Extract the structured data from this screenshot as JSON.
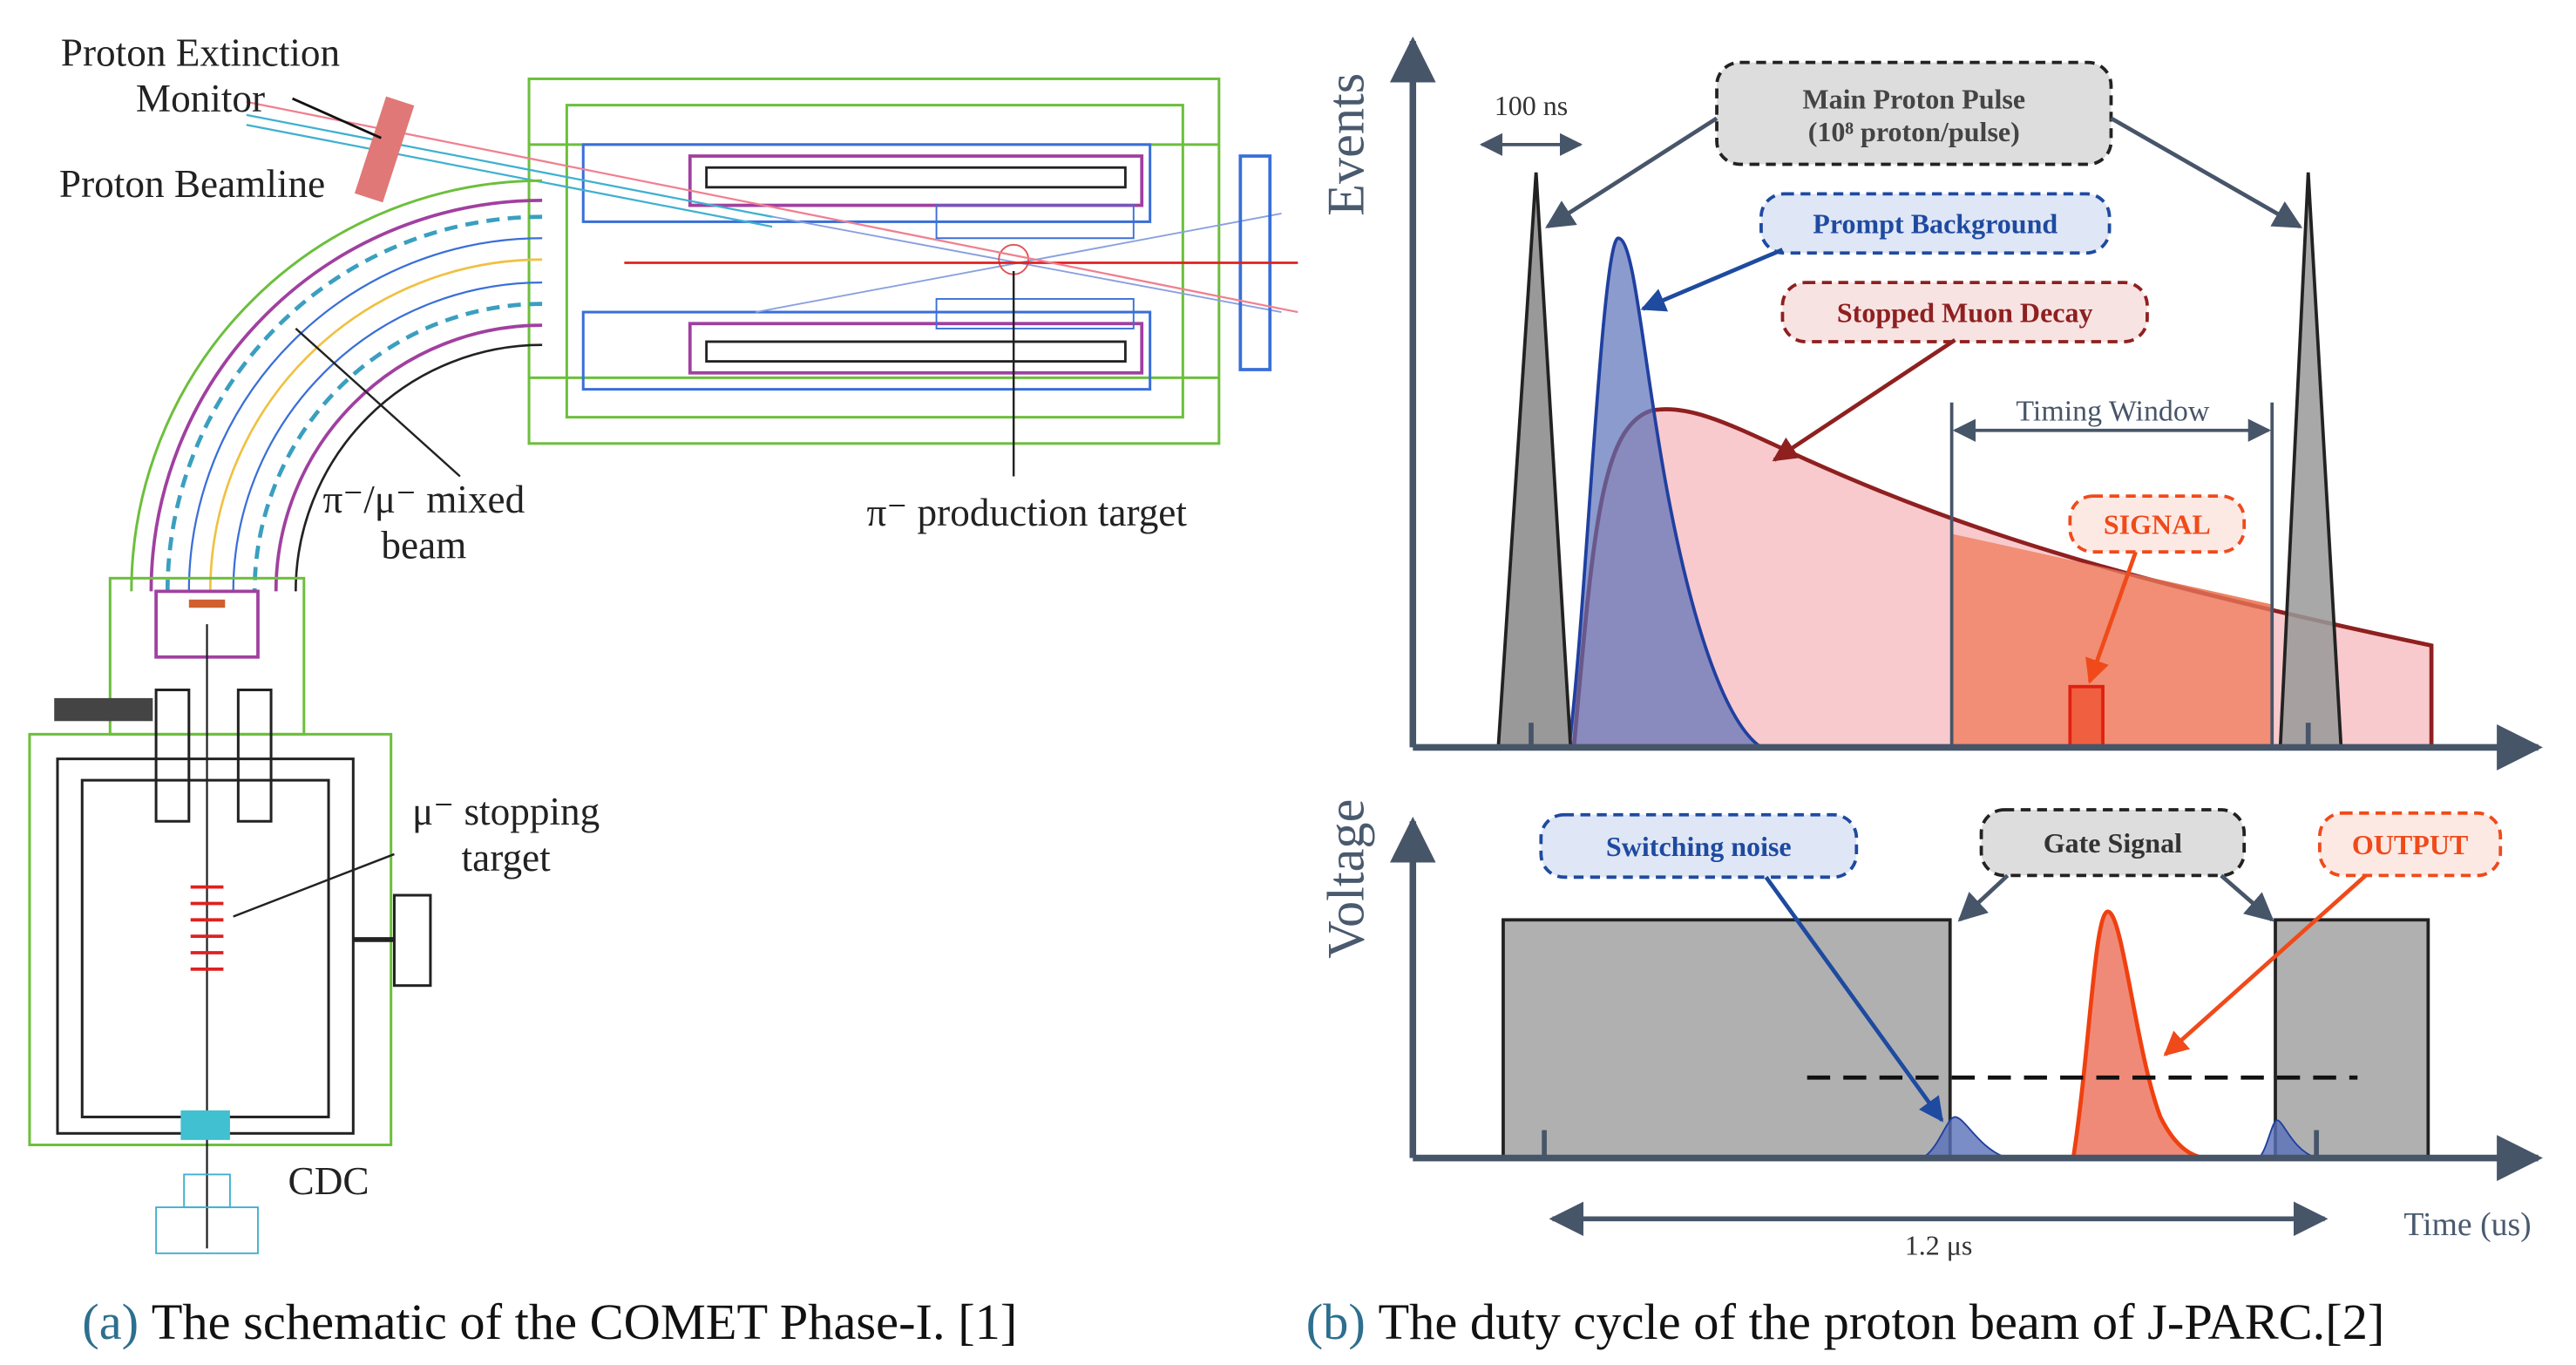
{
  "panel_a": {
    "labels": [
      "Proton Extinction",
      "Monitor",
      "Proton Beamline",
      "π⁻/μ⁻ mixed",
      "beam",
      "π⁻ production target",
      "μ⁻ stopping",
      "target",
      "CDC"
    ],
    "caption": {
      "tag": "(a)",
      "text": "The schematic of the COMET Phase-I. [1]"
    }
  },
  "panel_b": {
    "axes": {
      "upper": "Events",
      "lower": "Voltage",
      "time": "Time (us)"
    },
    "labels": {
      "width": "100 ns",
      "main_pulse": "Main Proton Pulse",
      "main_pulse_note": "(10⁸ proton/pulse)",
      "prompt": "Prompt Background",
      "muon_decay": "Stopped Muon Decay",
      "window": "Timing Window",
      "signal": "SIGNAL",
      "noise": "Switching noise",
      "gate": "Gate Signal",
      "output": "OUTPUT",
      "period": "1.2 μs"
    },
    "caption": {
      "tag": "(b)",
      "text": "The duty cycle of the proton beam of J-PARC.[2]"
    }
  }
}
